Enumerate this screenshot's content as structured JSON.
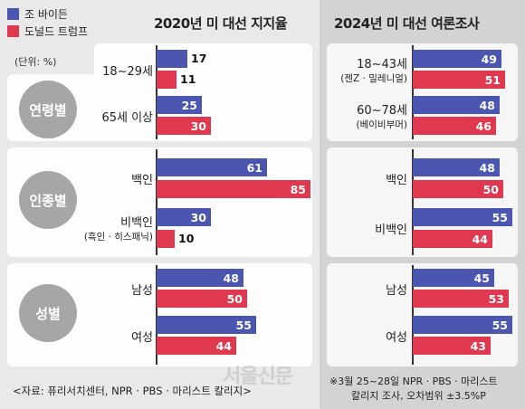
{
  "legend": [
    {
      "name": "조 바이든",
      "color": "#4a56b0"
    },
    {
      "name": "도널드 트럼프",
      "color": "#e0384f"
    }
  ],
  "headers": {
    "left": "2020년 미 대선 지지율",
    "right": "2024년 미 대선 여론조사"
  },
  "unit": "(단위: %)",
  "source": "<자료: 퓨리서치센터, NPR · PBS · 마리스트 칼리지>",
  "note": {
    "line1": "※3월 25~28일 NPR · PBS · 마리스트",
    "line2": "칼리지 조사, 오차범위 ±3.5%P"
  },
  "watermark": "서울신문",
  "chart_data": [
    {
      "type": "bar",
      "title": "2020년 미 대선 지지율",
      "groups": [
        {
          "name": "연령별",
          "categories": [
            {
              "label": "18~29세",
              "sub": ""
            },
            {
              "label": "65세 이상",
              "sub": ""
            }
          ]
        },
        {
          "name": "인종별",
          "categories": [
            {
              "label": "백인",
              "sub": ""
            },
            {
              "label": "비백인",
              "sub": "(흑인 · 히스패닉)"
            }
          ]
        },
        {
          "name": "성별",
          "categories": [
            {
              "label": "남성",
              "sub": ""
            },
            {
              "label": "여성",
              "sub": ""
            }
          ]
        }
      ],
      "series": [
        {
          "name": "조 바이든",
          "values": [
            17,
            25,
            61,
            30,
            48,
            55
          ]
        },
        {
          "name": "도널드 트럼프",
          "values": [
            11,
            30,
            85,
            10,
            50,
            44
          ]
        }
      ],
      "xlim": [
        0,
        100
      ]
    },
    {
      "type": "bar",
      "title": "2024년 미 대선 여론조사",
      "groups": [
        {
          "name": "연령별",
          "categories": [
            {
              "label": "18~43세",
              "sub": "(젠Z · 밀레니얼)"
            },
            {
              "label": "60~78세",
              "sub": "(베이비부머)"
            }
          ]
        },
        {
          "name": "인종별",
          "categories": [
            {
              "label": "백인",
              "sub": ""
            },
            {
              "label": "비백인",
              "sub": ""
            }
          ]
        },
        {
          "name": "성별",
          "categories": [
            {
              "label": "남성",
              "sub": ""
            },
            {
              "label": "여성",
              "sub": ""
            }
          ]
        }
      ],
      "series": [
        {
          "name": "조 바이든",
          "values": [
            49,
            48,
            48,
            55,
            45,
            55
          ]
        },
        {
          "name": "도널드 트럼프",
          "values": [
            51,
            46,
            50,
            44,
            53,
            43
          ]
        }
      ],
      "xlim": [
        0,
        100
      ]
    }
  ]
}
